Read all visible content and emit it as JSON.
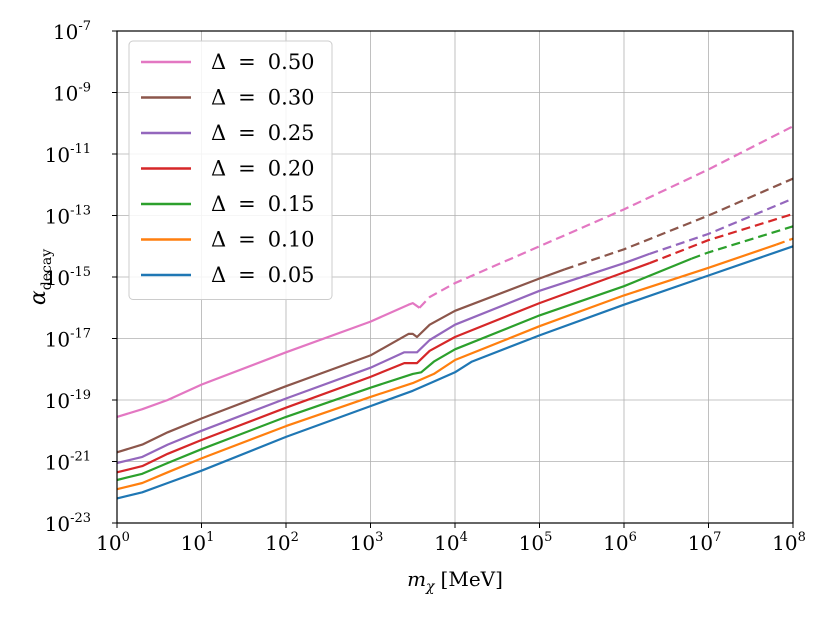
{
  "chart_data": {
    "type": "line",
    "title": "",
    "xlabel": {
      "var": "m",
      "sub": "χ",
      "unit": "[MeV]"
    },
    "ylabel": {
      "var": "α",
      "sub": "decay"
    },
    "x_scale": "log",
    "y_scale": "log",
    "xlim_exp": [
      0,
      8
    ],
    "ylim_exp": [
      -23,
      -7
    ],
    "x_tick_exponents": [
      "0",
      "1",
      "2",
      "3",
      "4",
      "5",
      "6",
      "7",
      "8"
    ],
    "y_tick_exponents": [
      "-23",
      "-21",
      "-19",
      "-17",
      "-15",
      "-13",
      "-11",
      "-9",
      "-7"
    ],
    "tick_base": "10",
    "grid": true,
    "legend_position": "top-left",
    "series": [
      {
        "name": "Δ = 0.50",
        "symbol": "Δ",
        "eq": "=",
        "value": "0.50",
        "color": "#e377c2",
        "solid": [
          [
            0,
            -19.55
          ],
          [
            0.3,
            -19.3
          ],
          [
            0.6,
            -19.0
          ],
          [
            1,
            -18.5
          ],
          [
            2,
            -17.45
          ],
          [
            3,
            -16.45
          ],
          [
            3.45,
            -15.9
          ],
          [
            3.5,
            -15.85
          ],
          [
            3.58,
            -16.0
          ]
        ],
        "dashed": [
          [
            3.58,
            -16.0
          ],
          [
            3.7,
            -15.65
          ],
          [
            4,
            -15.2
          ],
          [
            5,
            -14.0
          ],
          [
            6,
            -12.8
          ],
          [
            7,
            -11.5
          ],
          [
            8,
            -10.1
          ]
        ]
      },
      {
        "name": "Δ = 0.30",
        "symbol": "Δ",
        "eq": "=",
        "value": "0.30",
        "color": "#8c564b",
        "solid": [
          [
            0,
            -20.7
          ],
          [
            0.3,
            -20.45
          ],
          [
            0.6,
            -20.05
          ],
          [
            1,
            -19.6
          ],
          [
            2,
            -18.55
          ],
          [
            3,
            -17.55
          ],
          [
            3.45,
            -16.85
          ],
          [
            3.5,
            -16.85
          ],
          [
            3.55,
            -16.95
          ],
          [
            3.7,
            -16.55
          ],
          [
            4,
            -16.1
          ],
          [
            5,
            -15.05
          ],
          [
            5.3,
            -14.75
          ]
        ],
        "dashed": [
          [
            5.3,
            -14.75
          ],
          [
            6,
            -14.1
          ],
          [
            7,
            -13.0
          ],
          [
            8,
            -11.8
          ]
        ]
      },
      {
        "name": "Δ = 0.25",
        "symbol": "Δ",
        "eq": "=",
        "value": "0.25",
        "color": "#9467bd",
        "solid": [
          [
            0,
            -21.05
          ],
          [
            0.3,
            -20.85
          ],
          [
            0.6,
            -20.45
          ],
          [
            1,
            -20.0
          ],
          [
            2,
            -18.95
          ],
          [
            3,
            -17.95
          ],
          [
            3.4,
            -17.45
          ],
          [
            3.55,
            -17.45
          ],
          [
            3.7,
            -17.05
          ],
          [
            4,
            -16.55
          ],
          [
            5,
            -15.45
          ],
          [
            6,
            -14.55
          ],
          [
            6.3,
            -14.25
          ]
        ],
        "dashed": [
          [
            6.3,
            -14.25
          ],
          [
            7,
            -13.6
          ],
          [
            8,
            -12.45
          ]
        ]
      },
      {
        "name": "Δ = 0.20",
        "symbol": "Δ",
        "eq": "=",
        "value": "0.20",
        "color": "#d62728",
        "solid": [
          [
            0,
            -21.35
          ],
          [
            0.3,
            -21.15
          ],
          [
            0.6,
            -20.75
          ],
          [
            1,
            -20.3
          ],
          [
            2,
            -19.25
          ],
          [
            3,
            -18.25
          ],
          [
            3.4,
            -17.8
          ],
          [
            3.55,
            -17.8
          ],
          [
            3.7,
            -17.4
          ],
          [
            4,
            -16.95
          ],
          [
            5,
            -15.85
          ],
          [
            6,
            -14.85
          ],
          [
            6.3,
            -14.55
          ]
        ],
        "dashed": [
          [
            6.3,
            -14.55
          ],
          [
            7,
            -13.8
          ],
          [
            8,
            -12.95
          ]
        ]
      },
      {
        "name": "Δ = 0.15",
        "symbol": "Δ",
        "eq": "=",
        "value": "0.15",
        "color": "#2ca02c",
        "solid": [
          [
            0,
            -21.6
          ],
          [
            0.3,
            -21.4
          ],
          [
            0.6,
            -21.05
          ],
          [
            1,
            -20.6
          ],
          [
            2,
            -19.55
          ],
          [
            3,
            -18.6
          ],
          [
            3.5,
            -18.15
          ],
          [
            3.6,
            -18.1
          ],
          [
            3.75,
            -17.75
          ],
          [
            4,
            -17.35
          ],
          [
            5,
            -16.25
          ],
          [
            6,
            -15.3
          ],
          [
            6.8,
            -14.4
          ]
        ],
        "dashed": [
          [
            6.8,
            -14.4
          ],
          [
            7,
            -14.2
          ],
          [
            8,
            -13.35
          ]
        ]
      },
      {
        "name": "Δ = 0.10",
        "symbol": "Δ",
        "eq": "=",
        "value": "0.10",
        "color": "#ff7f0e",
        "solid": [
          [
            0,
            -21.9
          ],
          [
            0.3,
            -21.7
          ],
          [
            0.6,
            -21.35
          ],
          [
            1,
            -20.9
          ],
          [
            2,
            -19.85
          ],
          [
            3,
            -18.9
          ],
          [
            3.5,
            -18.45
          ],
          [
            3.75,
            -18.15
          ],
          [
            4,
            -17.7
          ],
          [
            5,
            -16.6
          ],
          [
            6,
            -15.6
          ],
          [
            7,
            -14.7
          ],
          [
            7.8,
            -13.95
          ]
        ],
        "dashed": [
          [
            7.8,
            -13.95
          ],
          [
            8,
            -13.75
          ]
        ]
      },
      {
        "name": "Δ = 0.05",
        "symbol": "Δ",
        "eq": "=",
        "value": "0.05",
        "color": "#1f77b4",
        "solid": [
          [
            0,
            -22.2
          ],
          [
            0.3,
            -22.0
          ],
          [
            0.6,
            -21.7
          ],
          [
            1,
            -21.3
          ],
          [
            2,
            -20.2
          ],
          [
            3,
            -19.2
          ],
          [
            3.5,
            -18.7
          ],
          [
            4,
            -18.1
          ],
          [
            4.2,
            -17.75
          ],
          [
            5,
            -16.9
          ],
          [
            6,
            -15.9
          ],
          [
            7,
            -14.95
          ],
          [
            8,
            -14.0
          ]
        ],
        "dashed": []
      }
    ]
  }
}
